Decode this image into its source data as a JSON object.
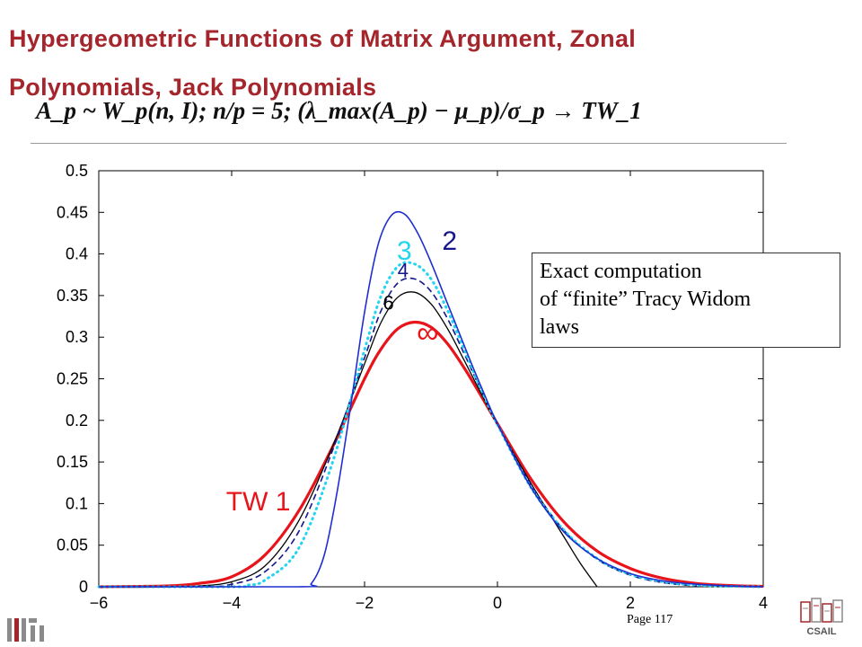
{
  "slide": {
    "title_line1": "Hypergeometric Functions of Matrix Argument, Zonal",
    "title_line2": "Polynomials, Jack Polynomials",
    "formula": "A_p ~ W_p(n, I);   n/p = 5;   (λ_max(A_p) − μ_p)/σ_p → TW_1",
    "annotation_lines": [
      "Exact computation",
      "of “finite” Tracy Widom",
      "laws"
    ],
    "page_number": "Page 117",
    "logo_left": "MIT",
    "logo_right": "CSAIL",
    "accent_color": "#a4262c"
  },
  "chart_data": {
    "type": "line",
    "title": "",
    "xlabel": "",
    "ylabel": "",
    "xlim": [
      -6,
      4
    ],
    "ylim": [
      0,
      0.5
    ],
    "x_ticks": [
      -6,
      -4,
      -2,
      0,
      2,
      4
    ],
    "y_ticks": [
      0,
      0.05,
      0.1,
      0.15,
      0.2,
      0.25,
      0.3,
      0.35,
      0.4,
      0.45,
      0.5
    ],
    "grid": false,
    "series": [
      {
        "name": "TW 1",
        "color": "#e8141b",
        "style": "solid",
        "width": 3.2,
        "x": [
          -6,
          -5,
          -4.5,
          -4,
          -3.5,
          -3,
          -2.5,
          -2,
          -1.75,
          -1.5,
          -1.25,
          -1,
          -0.75,
          -0.5,
          -0.25,
          0,
          0.5,
          1,
          1.5,
          2,
          2.5,
          3,
          3.5,
          4
        ],
        "y": [
          0,
          0.001,
          0.004,
          0.012,
          0.038,
          0.09,
          0.165,
          0.25,
          0.286,
          0.31,
          0.318,
          0.312,
          0.292,
          0.263,
          0.23,
          0.196,
          0.13,
          0.078,
          0.043,
          0.022,
          0.01,
          0.004,
          0.0015,
          0.0005
        ]
      },
      {
        "name": "6",
        "color": "#000000",
        "style": "solid",
        "width": 1.3,
        "x": [
          -6,
          -5,
          -4.5,
          -4,
          -3.5,
          -3,
          -2.5,
          -2,
          -1.75,
          -1.5,
          -1.25,
          -1,
          -0.75,
          -0.5,
          -0.25,
          0,
          0.5,
          1,
          1.25,
          1.5
        ],
        "y": [
          0,
          0,
          0.001,
          0.006,
          0.025,
          0.078,
          0.165,
          0.268,
          0.318,
          0.348,
          0.354,
          0.34,
          0.31,
          0.272,
          0.233,
          0.195,
          0.125,
          0.06,
          0.028,
          0
        ]
      },
      {
        "name": "4",
        "color": "#15168c",
        "style": "dashed",
        "width": 1.6,
        "x": [
          -6,
          -4.5,
          -4,
          -3.5,
          -3,
          -2.5,
          -2,
          -1.75,
          -1.5,
          -1.25,
          -1,
          -0.75,
          -0.5,
          -0.25,
          0,
          0.5,
          1,
          1.5,
          2,
          2.5,
          3
        ],
        "y": [
          0,
          0,
          0.003,
          0.018,
          0.065,
          0.16,
          0.275,
          0.332,
          0.365,
          0.37,
          0.355,
          0.322,
          0.28,
          0.237,
          0.196,
          0.123,
          0.068,
          0.033,
          0.014,
          0.005,
          0.001
        ]
      },
      {
        "name": "3",
        "color": "#22d4ee",
        "style": "dotted",
        "width": 3.0,
        "x": [
          -6,
          -4,
          -3.75,
          -3.5,
          -3,
          -2.5,
          -2,
          -1.75,
          -1.5,
          -1.25,
          -1,
          -0.75,
          -0.5,
          -0.25,
          0,
          0.5,
          1,
          1.5,
          2,
          2.5,
          3,
          3.5,
          4
        ],
        "y": [
          0,
          0,
          0.002,
          0.008,
          0.045,
          0.145,
          0.285,
          0.35,
          0.385,
          0.388,
          0.37,
          0.332,
          0.285,
          0.238,
          0.195,
          0.12,
          0.068,
          0.034,
          0.015,
          0.006,
          0.002,
          0.0005,
          0
        ]
      },
      {
        "name": "2",
        "color": "#1f2fcf",
        "style": "solid",
        "width": 1.6,
        "x": [
          -6,
          -3,
          -2.8,
          -2.6,
          -2.4,
          -2.2,
          -2,
          -1.8,
          -1.6,
          -1.4,
          -1.2,
          -1,
          -0.8,
          -0.6,
          -0.4,
          -0.2,
          0,
          0.5,
          1,
          1.5,
          2,
          2.5,
          3,
          3.5,
          4
        ],
        "y": [
          0,
          0,
          0.004,
          0.04,
          0.12,
          0.222,
          0.33,
          0.41,
          0.446,
          0.448,
          0.425,
          0.39,
          0.35,
          0.31,
          0.27,
          0.232,
          0.196,
          0.12,
          0.066,
          0.034,
          0.016,
          0.007,
          0.003,
          0.001,
          0
        ]
      }
    ],
    "annotations": [
      {
        "text": "TW 1",
        "x": -3.6,
        "y": 0.092,
        "color": "#e8141b"
      },
      {
        "text": "2",
        "x": -0.72,
        "y": 0.405,
        "color": "#15168c"
      },
      {
        "text": "3",
        "x": -1.4,
        "y": 0.393,
        "color": "#22d4ee"
      },
      {
        "text": "4",
        "x": -1.42,
        "y": 0.372,
        "color": "#15168c"
      },
      {
        "text": "6",
        "x": -1.64,
        "y": 0.333,
        "color": "#000000"
      },
      {
        "text": "∞",
        "x": -1.05,
        "y": 0.293,
        "color": "#e8141b"
      }
    ]
  }
}
